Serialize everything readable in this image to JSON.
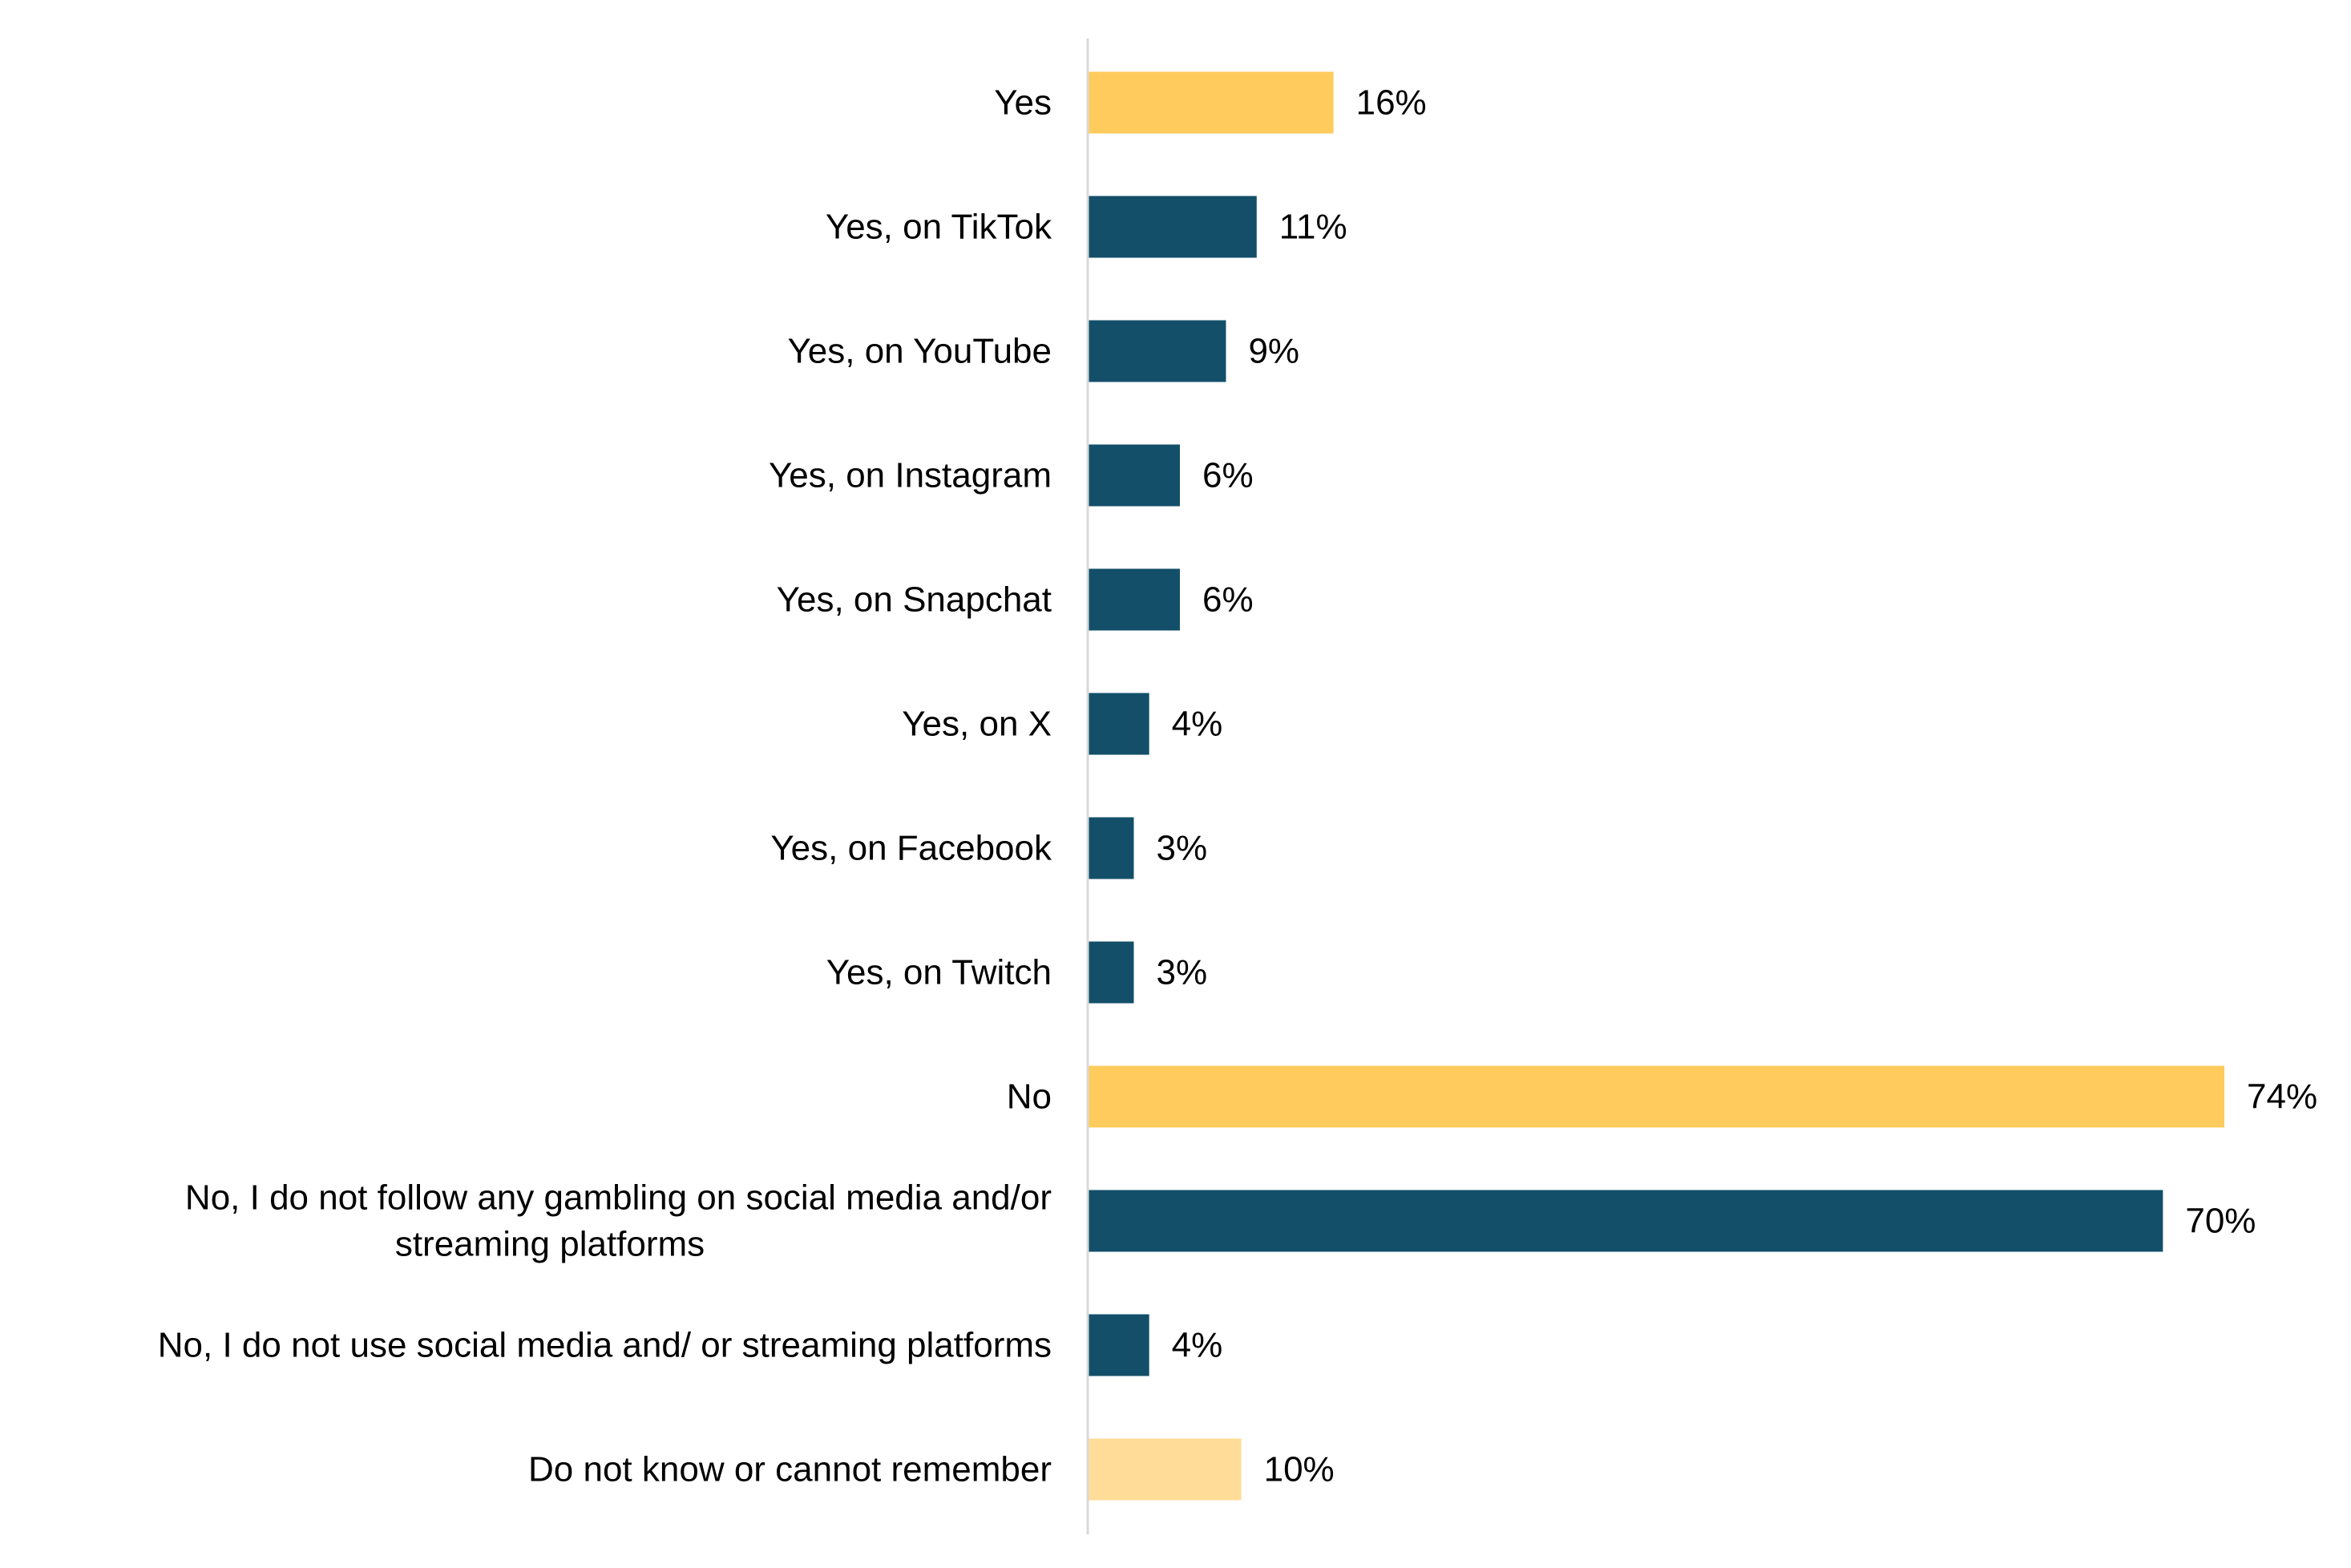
{
  "chart_data": {
    "type": "bar",
    "orientation": "horizontal",
    "categories": [
      "Yes",
      "Yes, on TikTok",
      "Yes, on YouTube",
      "Yes, on Instagram",
      "Yes, on Snapchat",
      "Yes, on X",
      "Yes, on Facebook",
      "Yes, on Twitch",
      "No",
      "No, I do not follow any gambling on social media and/or streaming platforms",
      "No, I do not use social media and/ or streaming platforms",
      "Do not know or cannot remember"
    ],
    "category_label_lines": [
      [
        "Yes"
      ],
      [
        "Yes, on TikTok"
      ],
      [
        "Yes, on YouTube"
      ],
      [
        "Yes, on Instagram"
      ],
      [
        "Yes, on Snapchat"
      ],
      [
        "Yes, on X"
      ],
      [
        "Yes, on Facebook"
      ],
      [
        "Yes, on Twitch"
      ],
      [
        "No"
      ],
      [
        "No, I do not follow any gambling on social media and/or",
        "streaming platforms"
      ],
      [
        "No, I do not use social media and/ or streaming platforms"
      ],
      [
        "Do not know or cannot remember"
      ]
    ],
    "values": [
      16,
      11,
      9,
      6,
      6,
      4,
      3,
      3,
      74,
      70,
      4,
      10
    ],
    "value_labels": [
      "16%",
      "11%",
      "9%",
      "6%",
      "6%",
      "4%",
      "3%",
      "3%",
      "74%",
      "70%",
      "4%",
      "10%"
    ],
    "bar_colors": [
      "#FFCB5C",
      "#134F69",
      "#134F69",
      "#134F69",
      "#134F69",
      "#134F69",
      "#134F69",
      "#134F69",
      "#FFCB5C",
      "#134F69",
      "#134F69",
      "#FFDC98"
    ],
    "unit": "%",
    "xlim": [
      0,
      74
    ],
    "grid": false,
    "legend": "none",
    "axis_color": "#D9D9D9"
  }
}
